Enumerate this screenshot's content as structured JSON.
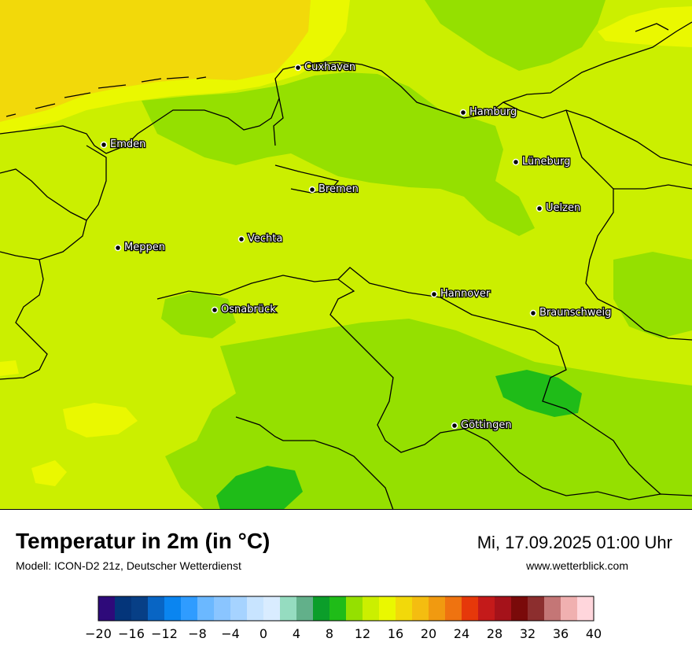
{
  "map": {
    "cities": [
      {
        "name": "Cuxhaven"
      },
      {
        "name": "Hamburg"
      },
      {
        "name": "Emden"
      },
      {
        "name": "Lüneburg"
      },
      {
        "name": "Bremen"
      },
      {
        "name": "Uelzen"
      },
      {
        "name": "Vechta"
      },
      {
        "name": "Meppen"
      },
      {
        "name": "Hannover"
      },
      {
        "name": "Osnabrück"
      },
      {
        "name": "Braunschweig"
      },
      {
        "name": "Göttingen"
      }
    ]
  },
  "header": {
    "title": "Temperatur in 2m (in °C)",
    "model": "Modell: ICON-D2 21z, Deutscher Wetterdienst",
    "datetime": "Mi, 17.09.2025 01:00 Uhr",
    "website": "www.wetterblick.com"
  },
  "legend": {
    "colors": [
      "#2e0a7a",
      "#04357a",
      "#073f86",
      "#0865c4",
      "#0a85f0",
      "#2f9cff",
      "#6bb8ff",
      "#8ac5ff",
      "#a6d3ff",
      "#c8e4ff",
      "#d9ecff",
      "#95dcc0",
      "#62b08a",
      "#0b9e2a",
      "#1fbc18",
      "#95e000",
      "#cbef00",
      "#eaf800",
      "#f2d90a",
      "#f4bd10",
      "#f19a10",
      "#ef7310",
      "#e6380a",
      "#c41a1a",
      "#a5121a",
      "#7a0a0a",
      "#8c2e2e",
      "#c47676",
      "#f0b0b0",
      "#ffd6dc"
    ],
    "ticks": [
      "−20",
      "−16",
      "−12",
      "−8",
      "−4",
      "0",
      "4",
      "8",
      "12",
      "16",
      "20",
      "24",
      "28",
      "32",
      "36",
      "40"
    ]
  }
}
